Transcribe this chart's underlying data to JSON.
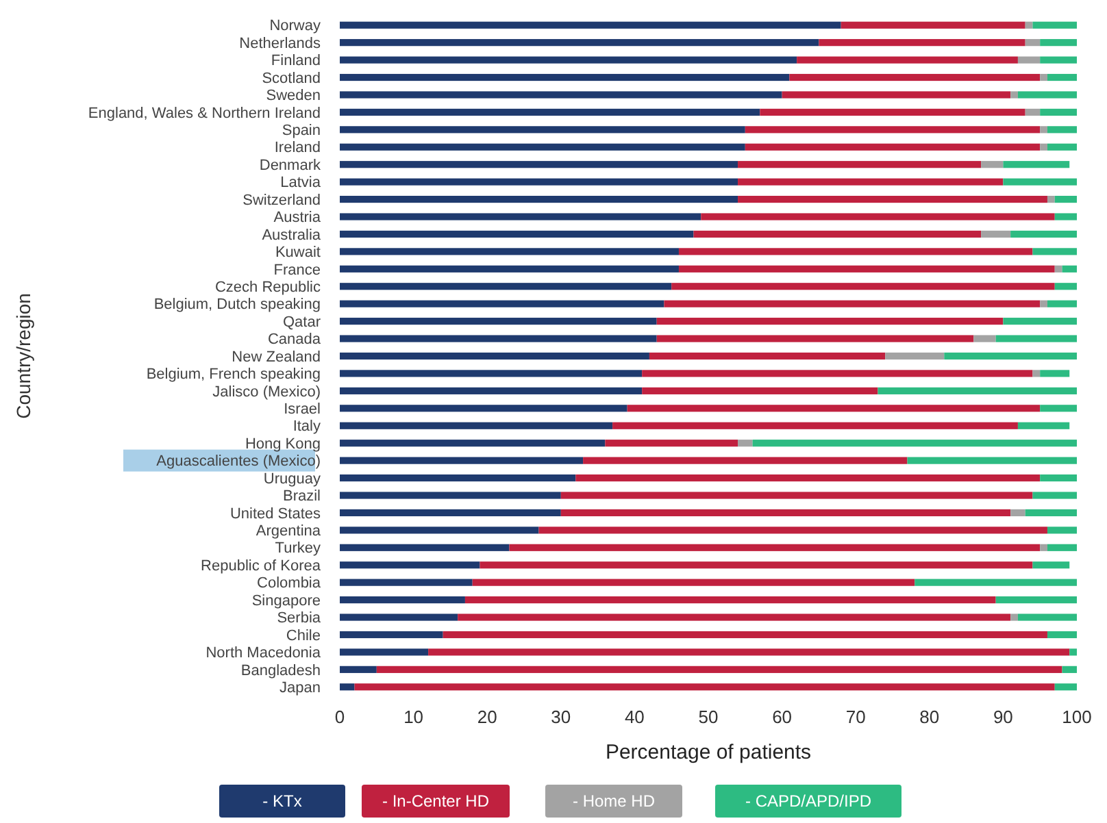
{
  "chart_data": {
    "type": "bar",
    "orientation": "horizontal",
    "stacked": true,
    "xlabel": "Percentage of patients",
    "ylabel": "Country/region",
    "categories": [
      "Norway",
      "Netherlands",
      "Finland",
      "Scotland",
      "Sweden",
      "England, Wales & Northern Ireland",
      "Spain",
      "Ireland",
      "Denmark",
      "Latvia",
      "Switzerland",
      "Austria",
      "Australia",
      "Kuwait",
      "France",
      "Czech Republic",
      "Belgium, Dutch speaking",
      "Qatar",
      "Canada",
      "New Zealand",
      "Belgium, French speaking",
      "Jalisco (Mexico)",
      "Israel",
      "Italy",
      "Hong Kong",
      "Aguascalientes (Mexico)",
      "Uruguay",
      "Brazil",
      "United States",
      "Argentina",
      "Turkey",
      "Republic of Korea",
      "Colombia",
      "Singapore",
      "Serbia",
      "Chile",
      "North Macedonia",
      "Bangladesh",
      "Japan"
    ],
    "series": [
      {
        "name": "- KTx",
        "color": "#1f3a6e",
        "values": [
          68,
          65,
          62,
          61,
          60,
          57,
          55,
          55,
          54,
          54,
          54,
          49,
          48,
          46,
          46,
          45,
          44,
          43,
          43,
          42,
          41,
          41,
          39,
          37,
          36,
          33,
          32,
          30,
          30,
          27,
          23,
          19,
          18,
          17,
          16,
          14,
          12,
          5,
          2
        ]
      },
      {
        "name": "- In-Center HD",
        "color": "#c0213f",
        "values": [
          25,
          28,
          30,
          34,
          31,
          36,
          40,
          40,
          33,
          36,
          42,
          48,
          39,
          48,
          51,
          52,
          51,
          47,
          43,
          32,
          53,
          32,
          56,
          55,
          18,
          44,
          63,
          64,
          61,
          69,
          72,
          75,
          60,
          72,
          75,
          82,
          87,
          93,
          95
        ]
      },
      {
        "name": "- Home HD",
        "color": "#a3a3a3",
        "values": [
          1,
          2,
          3,
          1,
          1,
          2,
          1,
          1,
          3,
          0,
          1,
          0,
          4,
          0,
          1,
          0,
          1,
          0,
          3,
          8,
          1,
          0,
          0,
          0,
          2,
          0,
          0,
          0,
          2,
          0,
          1,
          0,
          0,
          0,
          1,
          0,
          0,
          0,
          0
        ]
      },
      {
        "name": "- CAPD/APD/IPD",
        "color": "#2dbb82",
        "values": [
          6,
          5,
          5,
          4,
          8,
          5,
          4,
          4,
          9,
          10,
          3,
          3,
          9,
          6,
          2,
          3,
          4,
          10,
          11,
          18,
          4,
          27,
          5,
          7,
          44,
          23,
          5,
          6,
          7,
          4,
          4,
          5,
          22,
          11,
          8,
          4,
          1,
          2,
          3
        ]
      }
    ],
    "xlim": [
      0,
      100
    ],
    "xticks": [
      0,
      10,
      20,
      30,
      40,
      50,
      60,
      70,
      80,
      90,
      100
    ],
    "grid": false,
    "legend": "bottom"
  }
}
